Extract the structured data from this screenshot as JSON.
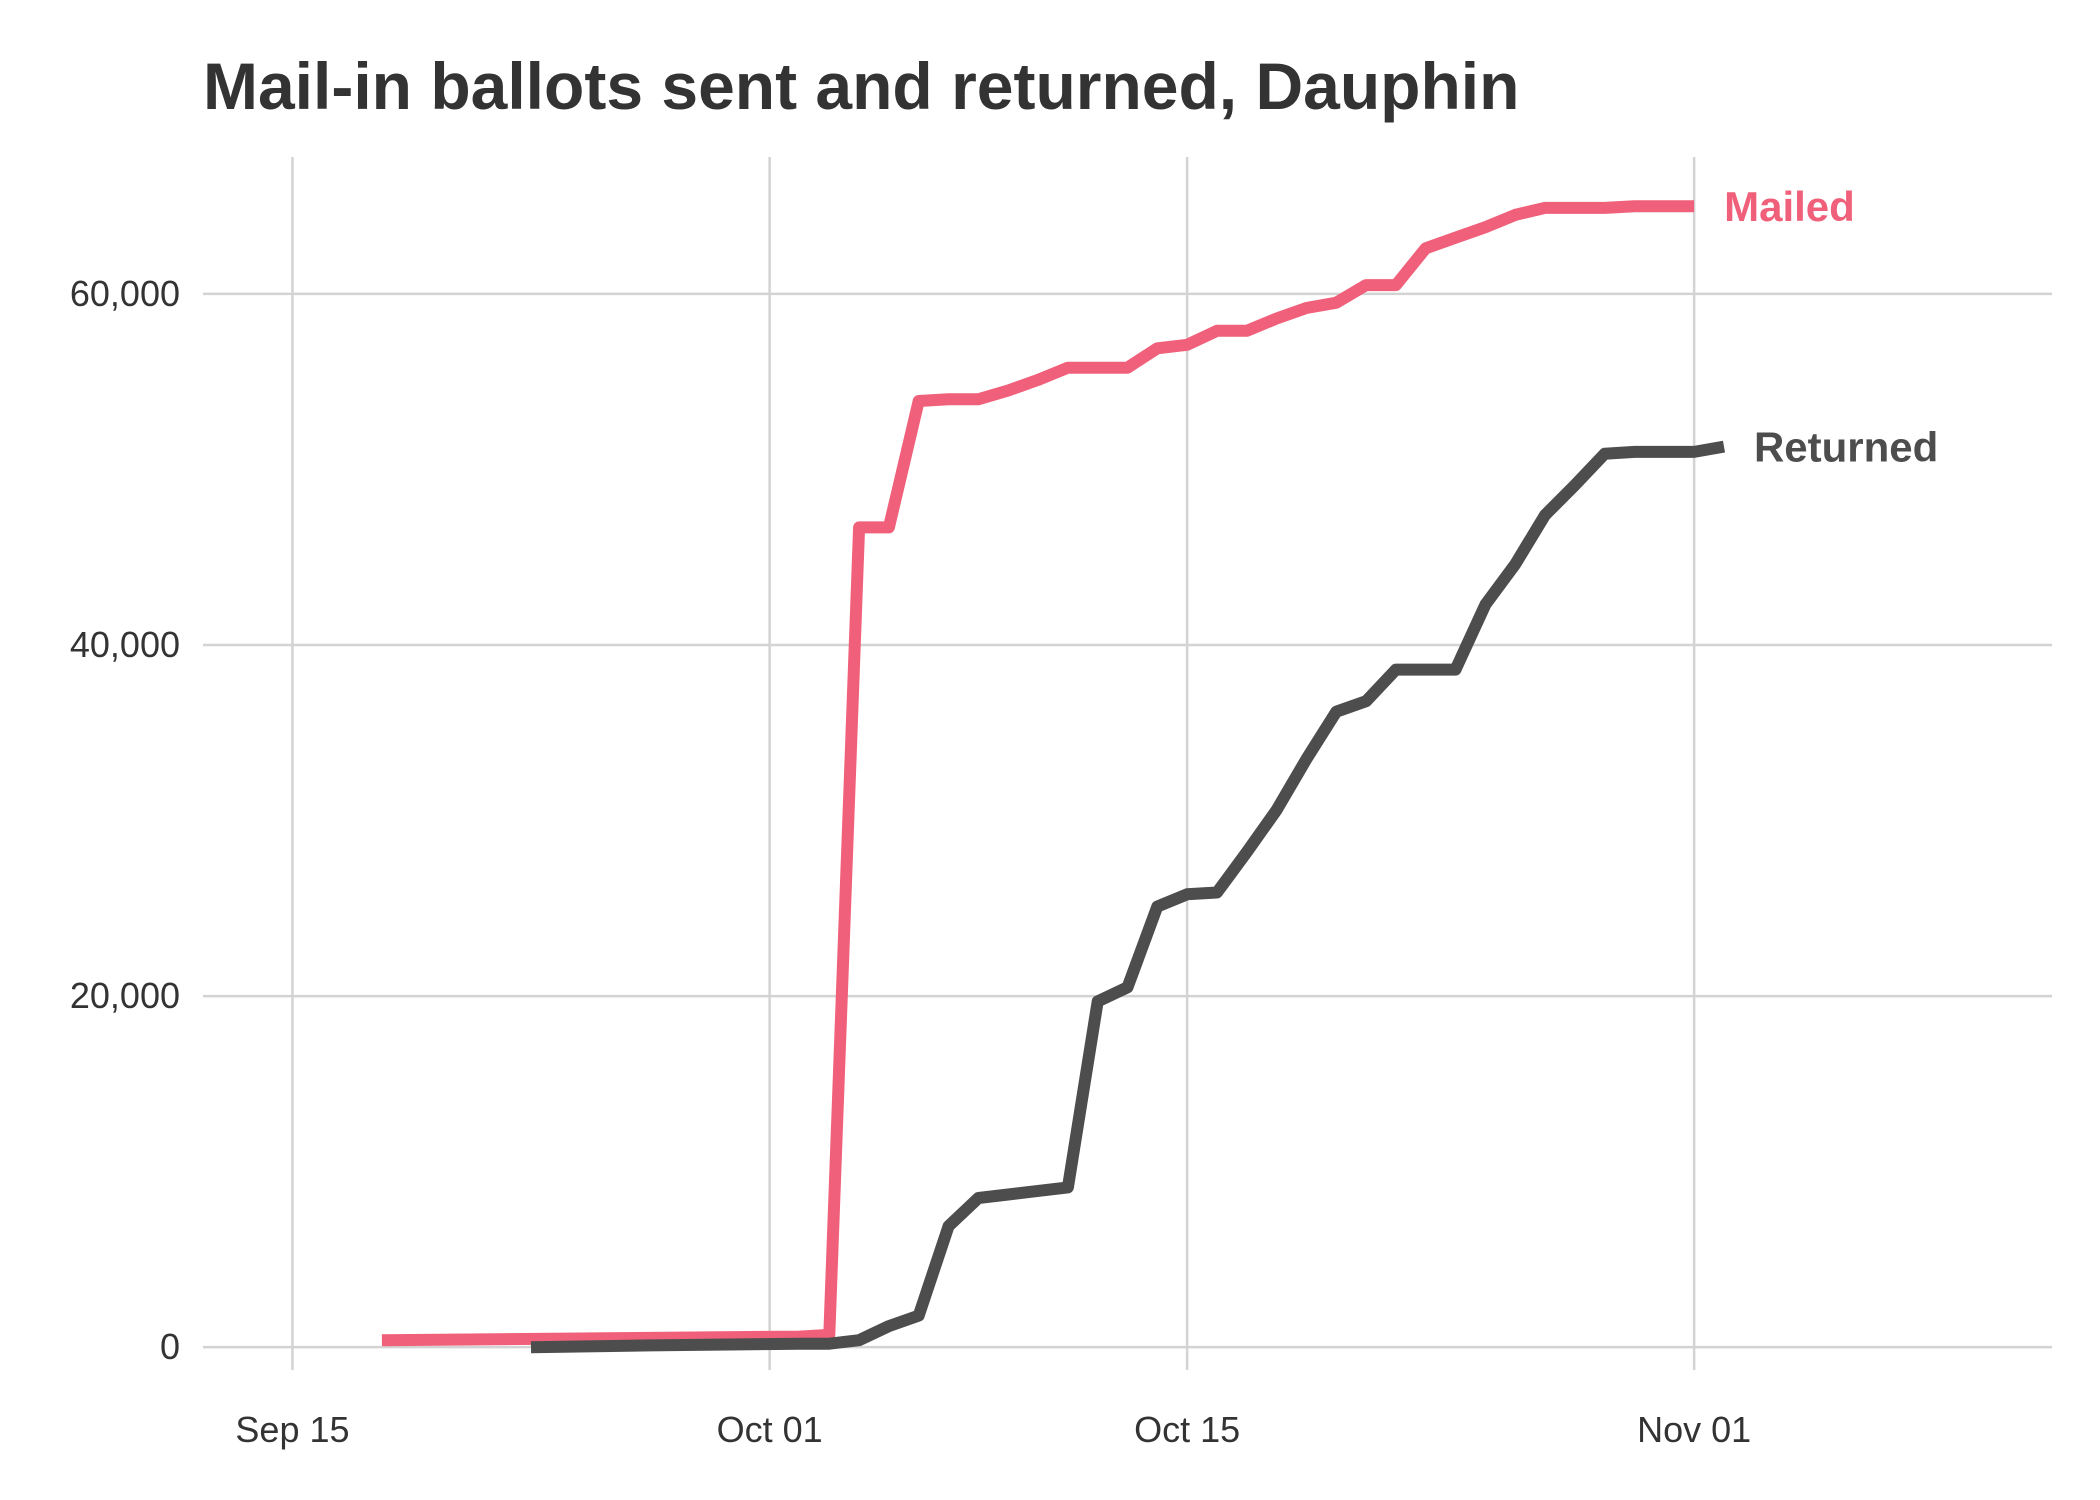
{
  "chart_data": {
    "type": "line",
    "title": "Mail-in ballots sent and returned, Dauphin",
    "xlabel": "",
    "ylabel": "",
    "xlim": [
      "2020-09-12",
      "2020-11-13"
    ],
    "ylim": [
      -1300,
      67800
    ],
    "x_ticks": [
      {
        "date": "2020-09-15",
        "label": "Sep 15"
      },
      {
        "date": "2020-10-01",
        "label": "Oct 01"
      },
      {
        "date": "2020-10-15",
        "label": "Oct 15"
      },
      {
        "date": "2020-11-01",
        "label": "Nov 01"
      }
    ],
    "y_ticks": [
      {
        "value": 0,
        "label": "0"
      },
      {
        "value": 20000,
        "label": "20,000"
      },
      {
        "value": 40000,
        "label": "40,000"
      },
      {
        "value": 60000,
        "label": "60,000"
      }
    ],
    "grid": true,
    "legend": "direct labels at line ends",
    "series": [
      {
        "name": "Mailed",
        "color": "#f0607a",
        "points": [
          [
            "2020-09-18",
            400
          ],
          [
            "2020-10-02",
            600
          ],
          [
            "2020-10-03",
            700
          ],
          [
            "2020-10-04",
            46700
          ],
          [
            "2020-10-05",
            46700
          ],
          [
            "2020-10-06",
            53900
          ],
          [
            "2020-10-07",
            54000
          ],
          [
            "2020-10-08",
            54000
          ],
          [
            "2020-10-09",
            54500
          ],
          [
            "2020-10-10",
            55100
          ],
          [
            "2020-10-11",
            55800
          ],
          [
            "2020-10-12",
            55800
          ],
          [
            "2020-10-13",
            55800
          ],
          [
            "2020-10-14",
            56900
          ],
          [
            "2020-10-15",
            57100
          ],
          [
            "2020-10-16",
            57900
          ],
          [
            "2020-10-17",
            57900
          ],
          [
            "2020-10-18",
            58600
          ],
          [
            "2020-10-19",
            59200
          ],
          [
            "2020-10-20",
            59500
          ],
          [
            "2020-10-21",
            60500
          ],
          [
            "2020-10-22",
            60500
          ],
          [
            "2020-10-23",
            62600
          ],
          [
            "2020-10-24",
            63200
          ],
          [
            "2020-10-25",
            63800
          ],
          [
            "2020-10-26",
            64500
          ],
          [
            "2020-10-27",
            64900
          ],
          [
            "2020-10-28",
            64900
          ],
          [
            "2020-10-29",
            64900
          ],
          [
            "2020-10-30",
            65000
          ],
          [
            "2020-10-31",
            65000
          ],
          [
            "2020-11-01",
            65000
          ]
        ]
      },
      {
        "name": "Returned",
        "color": "#4d4d4d",
        "points": [
          [
            "2020-09-23",
            0
          ],
          [
            "2020-09-27",
            100
          ],
          [
            "2020-10-02",
            200
          ],
          [
            "2020-10-03",
            200
          ],
          [
            "2020-10-04",
            400
          ],
          [
            "2020-10-05",
            1200
          ],
          [
            "2020-10-06",
            1800
          ],
          [
            "2020-10-07",
            6900
          ],
          [
            "2020-10-08",
            8500
          ],
          [
            "2020-10-09",
            8700
          ],
          [
            "2020-10-10",
            8900
          ],
          [
            "2020-10-11",
            9100
          ],
          [
            "2020-10-12",
            19700
          ],
          [
            "2020-10-13",
            20500
          ],
          [
            "2020-10-14",
            25100
          ],
          [
            "2020-10-15",
            25800
          ],
          [
            "2020-10-16",
            25900
          ],
          [
            "2020-10-17",
            28200
          ],
          [
            "2020-10-18",
            30600
          ],
          [
            "2020-10-19",
            33500
          ],
          [
            "2020-10-20",
            36200
          ],
          [
            "2020-10-21",
            36800
          ],
          [
            "2020-10-22",
            38600
          ],
          [
            "2020-10-23",
            38600
          ],
          [
            "2020-10-24",
            38600
          ],
          [
            "2020-10-25",
            42300
          ],
          [
            "2020-10-26",
            44600
          ],
          [
            "2020-10-27",
            47400
          ],
          [
            "2020-10-28",
            49100
          ],
          [
            "2020-10-29",
            50900
          ],
          [
            "2020-10-30",
            51000
          ],
          [
            "2020-10-31",
            51000
          ],
          [
            "2020-11-01",
            51000
          ],
          [
            "2020-11-02",
            51300
          ]
        ]
      }
    ]
  }
}
